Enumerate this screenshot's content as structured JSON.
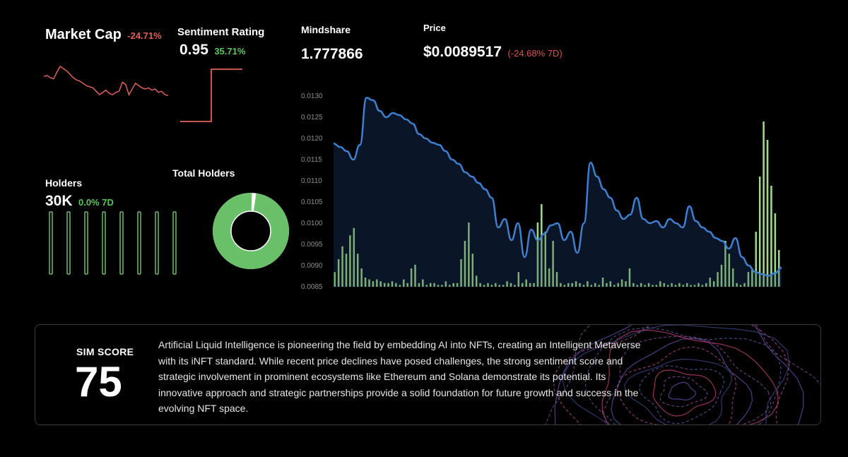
{
  "market_cap": {
    "label": "Market Cap",
    "change": "-24.71%",
    "color": "#e0605a"
  },
  "sentiment": {
    "label": "Sentiment Rating",
    "value": "0.95",
    "change": "35.71%",
    "color": "#e0605a"
  },
  "mindshare": {
    "label": "Mindshare",
    "value": "1.777866"
  },
  "price": {
    "label": "Price",
    "value": "$0.0089517",
    "change": "(-24.68% 7D)"
  },
  "holders": {
    "label": "Holders",
    "value": "30K",
    "change": "0.0% 7D",
    "bar_color": "#7ed87f",
    "bars": [
      1,
      1,
      1,
      1,
      1,
      1,
      1,
      1
    ]
  },
  "total_holders": {
    "label": "Total Holders",
    "ring_color": "#6abf69",
    "share": 0.98
  },
  "sim": {
    "label": "SIM SCORE",
    "value": "75",
    "description": "Artificial Liquid Intelligence is pioneering the field by embedding AI into NFTs, creating an Intelligent Metaverse with its iNFT standard. While recent price declines have posed challenges, the strong sentiment score and strategic involvement in prominent ecosystems like Ethereum and Solana demonstrate its potential. Its innovative approach and strategic partnerships provide a solid foundation for future growth and success in the evolving NFT space."
  },
  "chart_data": [
    {
      "type": "line",
      "series": [
        {
          "values": [
            0.62,
            0.64,
            0.6,
            0.58,
            0.7,
            0.8,
            0.76,
            0.72,
            0.66,
            0.6,
            0.56,
            0.54,
            0.5,
            0.46,
            0.44,
            0.42,
            0.36,
            0.3,
            0.34,
            0.38,
            0.32,
            0.3,
            0.34,
            0.36,
            0.52,
            0.48,
            0.3,
            0.4,
            0.5,
            0.46,
            0.42,
            0.4,
            0.42,
            0.38,
            0.4,
            0.34,
            0.36,
            0.3,
            0.28
          ]
        }
      ],
      "ylim": [
        0,
        1
      ],
      "color": "#e0605a"
    },
    {
      "type": "line",
      "series": [
        {
          "values": [
            0,
            0,
            0,
            0,
            0,
            1,
            1,
            1,
            1,
            1,
            1
          ]
        }
      ],
      "ylim": [
        0,
        1
      ],
      "color": "#e0605a"
    },
    {
      "type": "area",
      "y_ticks": [
        "0.0130",
        "0.0125",
        "0.0120",
        "0.0115",
        "0.0110",
        "0.0105",
        "0.0100",
        "0.0095",
        "0.0090",
        "0.0085"
      ],
      "ylim": [
        0.0085,
        0.013
      ],
      "line_color": "#3f7fd0",
      "fill_color": "#0c1a2f",
      "series": [
        {
          "values": [
            0.01188,
            0.0118,
            0.0117,
            0.0115,
            0.01185,
            0.01296,
            0.0129,
            0.01265,
            0.0125,
            0.0126,
            0.01255,
            0.01245,
            0.01235,
            0.0121,
            0.012,
            0.0119,
            0.01185,
            0.0117,
            0.0115,
            0.0114,
            0.0112,
            0.0111,
            0.01095,
            0.0108,
            0.0106,
            0.0099,
            0.0101,
            0.0096,
            0.01,
            0.0092,
            0.00985,
            0.0096,
            0.00975,
            0.00995,
            0.01,
            0.0096,
            0.0098,
            0.0093,
            0.01,
            0.01143,
            0.0111,
            0.0108,
            0.0106,
            0.0103,
            0.0101,
            0.0102,
            0.0106,
            0.0101,
            0.01,
            0.01005,
            0.0099,
            0.0101,
            0.01,
            0.0099,
            0.0104,
            0.01005,
            0.0099,
            0.0098,
            0.00965,
            0.00958,
            0.0094,
            0.00965,
            0.0092,
            0.009,
            0.00885,
            0.0088,
            0.00876,
            0.00882,
            0.00895
          ]
        }
      ],
      "volume": [
        0.08,
        0.15,
        0.22,
        0.18,
        0.28,
        0.32,
        0.18,
        0.1,
        0.05,
        0.04,
        0.03,
        0.04,
        0.03,
        0.02,
        0.02,
        0.03,
        0.02,
        0.01,
        0.04,
        0.02,
        0.1,
        0.12,
        0.02,
        0.04,
        0.01,
        0.02,
        0.02,
        0.01,
        0.01,
        0.03,
        0.01,
        0.02,
        0.02,
        0.15,
        0.25,
        0.35,
        0.18,
        0.06,
        0.02,
        0.01,
        0.02,
        0.01,
        0.02,
        0.01,
        0.01,
        0.03,
        0.02,
        0.01,
        0.08,
        0.02,
        0.04,
        0.02,
        0.02,
        0.35,
        0.45,
        0.3,
        0.1,
        0.25,
        0.08,
        0.02,
        0.01,
        0.02,
        0.02,
        0.03,
        0.02,
        0.01,
        0.03,
        0.01,
        0.02,
        0.01,
        0.05,
        0.02,
        0.03,
        0.01,
        0.02,
        0.04,
        0.03,
        0.1,
        0.02,
        0.01,
        0.02,
        0.01,
        0.02,
        0.01,
        0.01,
        0.03,
        0.02,
        0.01,
        0.02,
        0.01,
        0.02,
        0.01,
        0.02,
        0.01,
        0.01,
        0.02,
        0.01,
        0.02,
        0.05,
        0.03,
        0.08,
        0.12,
        0.25,
        0.18,
        0.1,
        0.02,
        0.01,
        0.02,
        0.08,
        0.1,
        0.3,
        0.6,
        0.9,
        0.8,
        0.55,
        0.4,
        0.2
      ],
      "volume_color": "#9ed98a"
    }
  ]
}
